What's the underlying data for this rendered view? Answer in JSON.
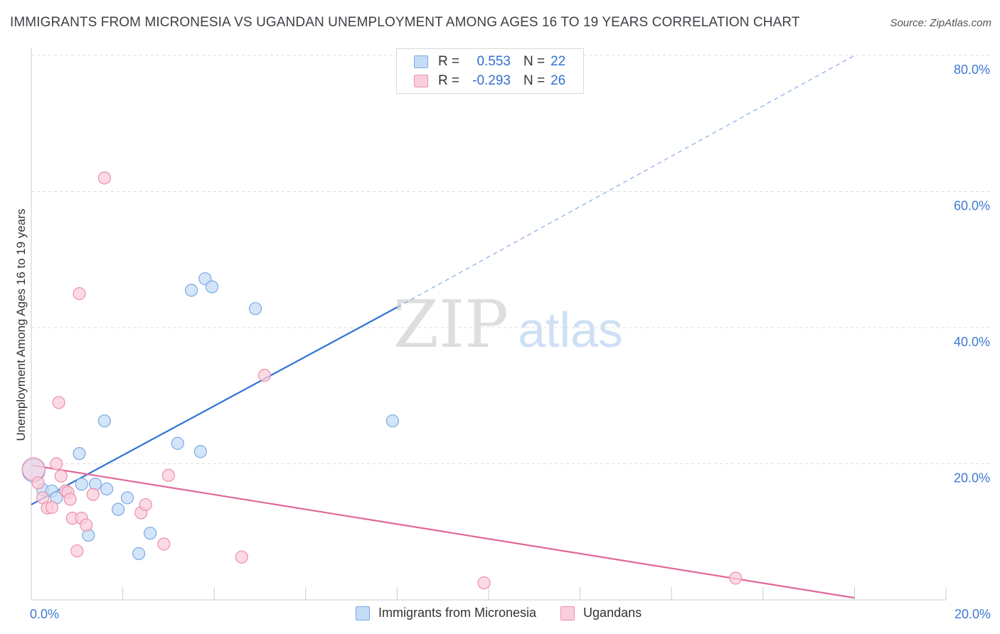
{
  "header": {
    "title": "IMMIGRANTS FROM MICRONESIA VS UGANDAN UNEMPLOYMENT AMONG AGES 16 TO 19 YEARS CORRELATION CHART",
    "source": "Source: ZipAtlas.com"
  },
  "watermark": {
    "zip": "ZIP",
    "atlas": "atlas"
  },
  "legend_top": {
    "rows": [
      {
        "r_label": "R =",
        "r_value": "0.553",
        "n_label": "N =",
        "n_value": "22"
      },
      {
        "r_label": "R =",
        "r_value": "-0.293",
        "n_label": "N =",
        "n_value": "26"
      }
    ]
  },
  "legend_bottom": {
    "series1": "Immigrants from Micronesia",
    "series2": "Ugandans"
  },
  "colors": {
    "blue_fill": "#c5dcf7",
    "blue_stroke": "#7aaae6",
    "blue_line": "#2f72d6",
    "pink_fill": "#f9cedb",
    "pink_stroke": "#ec8fac",
    "pink_line": "#e0679a",
    "tick_text": "#3c7ad4",
    "grid": "#dcdcdc"
  },
  "chart_data": {
    "type": "scatter",
    "title": "IMMIGRANTS FROM MICRONESIA VS UGANDAN UNEMPLOYMENT AMONG AGES 16 TO 19 YEARS CORRELATION CHART",
    "xlabel": "",
    "ylabel": "Unemployment Among Ages 16 to 19 years",
    "xlim": [
      0,
      20
    ],
    "ylim": [
      0,
      80
    ],
    "x_ticks": [
      0,
      20
    ],
    "x_tick_labels": [
      "0.0%",
      "20.0%"
    ],
    "y_ticks": [
      20,
      40,
      60,
      80
    ],
    "y_tick_labels": [
      "20.0%",
      "40.0%",
      "60.0%",
      "80.0%"
    ],
    "series": [
      {
        "name": "Immigrants from Micronesia",
        "r": 0.553,
        "n": 22,
        "points": [
          {
            "x": 0.05,
            "y": 19.0,
            "big": true
          },
          {
            "x": 0.25,
            "y": 16.2
          },
          {
            "x": 0.45,
            "y": 16.0
          },
          {
            "x": 0.55,
            "y": 15.0
          },
          {
            "x": 0.75,
            "y": 16.0
          },
          {
            "x": 1.1,
            "y": 17.0
          },
          {
            "x": 1.05,
            "y": 21.5
          },
          {
            "x": 1.25,
            "y": 9.5
          },
          {
            "x": 1.4,
            "y": 17.0
          },
          {
            "x": 1.6,
            "y": 26.3
          },
          {
            "x": 1.65,
            "y": 16.3
          },
          {
            "x": 1.9,
            "y": 13.3
          },
          {
            "x": 2.1,
            "y": 15.0
          },
          {
            "x": 2.35,
            "y": 6.8
          },
          {
            "x": 2.6,
            "y": 9.8
          },
          {
            "x": 3.2,
            "y": 23.0
          },
          {
            "x": 3.5,
            "y": 45.5
          },
          {
            "x": 3.7,
            "y": 21.8
          },
          {
            "x": 3.8,
            "y": 47.2
          },
          {
            "x": 3.95,
            "y": 46.0
          },
          {
            "x": 4.9,
            "y": 42.8
          },
          {
            "x": 7.9,
            "y": 26.3
          }
        ],
        "trend": {
          "x1": 0.0,
          "y1": 14.0,
          "x2": 8.0,
          "y2": 43.0,
          "dash_x2": 18.0,
          "dash_y2": 80.0
        }
      },
      {
        "name": "Ugandans",
        "r": -0.293,
        "n": 26,
        "points": [
          {
            "x": 0.05,
            "y": 19.2,
            "big": true
          },
          {
            "x": 0.15,
            "y": 17.2
          },
          {
            "x": 0.25,
            "y": 15.0
          },
          {
            "x": 0.35,
            "y": 13.5
          },
          {
            "x": 0.45,
            "y": 13.6
          },
          {
            "x": 0.55,
            "y": 20.0
          },
          {
            "x": 0.6,
            "y": 29.0
          },
          {
            "x": 0.65,
            "y": 18.2
          },
          {
            "x": 0.75,
            "y": 16.0
          },
          {
            "x": 0.8,
            "y": 15.8
          },
          {
            "x": 0.85,
            "y": 14.8
          },
          {
            "x": 0.9,
            "y": 12.0
          },
          {
            "x": 1.0,
            "y": 7.2
          },
          {
            "x": 1.05,
            "y": 45.0
          },
          {
            "x": 1.1,
            "y": 12.0
          },
          {
            "x": 1.2,
            "y": 11.0
          },
          {
            "x": 1.35,
            "y": 15.5
          },
          {
            "x": 1.6,
            "y": 62.0
          },
          {
            "x": 2.4,
            "y": 12.8
          },
          {
            "x": 2.5,
            "y": 14.0
          },
          {
            "x": 2.9,
            "y": 8.2
          },
          {
            "x": 3.0,
            "y": 18.3
          },
          {
            "x": 4.6,
            "y": 6.3
          },
          {
            "x": 5.1,
            "y": 33.0
          },
          {
            "x": 9.9,
            "y": 2.5
          },
          {
            "x": 15.4,
            "y": 3.2
          }
        ],
        "trend": {
          "x1": 0.0,
          "y1": 19.8,
          "x2": 18.0,
          "y2": 0.3
        }
      }
    ]
  }
}
